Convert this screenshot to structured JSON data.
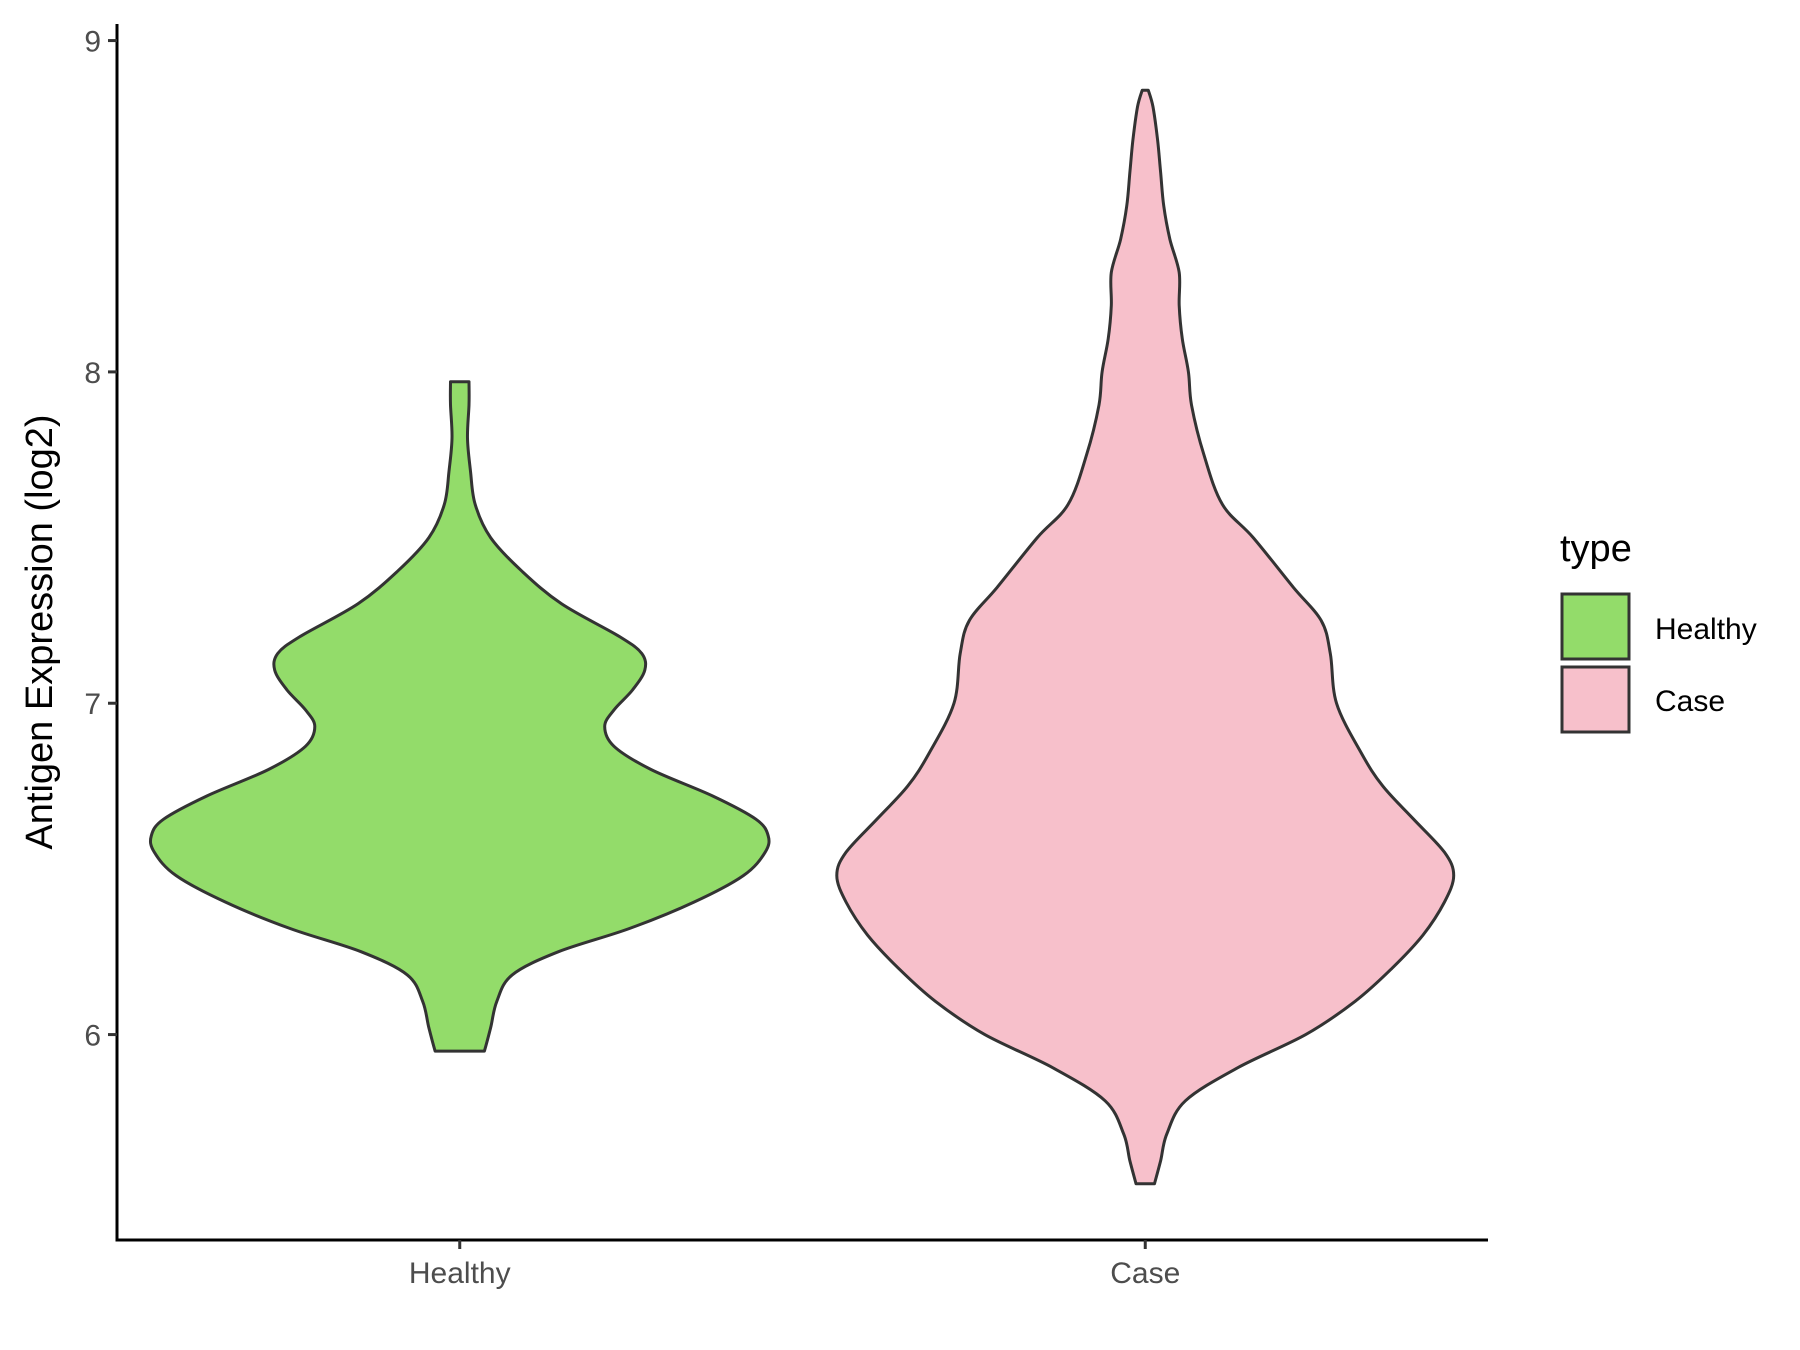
{
  "chart_data": {
    "type": "violin",
    "ylabel": "Antigen Expression (log2)",
    "xlabel": "",
    "ylim": [
      5.38,
      9.05
    ],
    "yticks": [
      6,
      7,
      8,
      9
    ],
    "categories": [
      "Healthy",
      "Case"
    ],
    "legend": {
      "title": "type",
      "position": "right",
      "entries": [
        {
          "label": "Healthy",
          "color": "#93dc6a"
        },
        {
          "label": "Case",
          "color": "#f7c0cb"
        }
      ]
    },
    "grid": false,
    "series": [
      {
        "name": "Healthy",
        "color": "#93dc6a",
        "min": 5.95,
        "max": 7.97,
        "profile": [
          [
            5.95,
            0.08
          ],
          [
            6.02,
            0.1
          ],
          [
            6.1,
            0.12
          ],
          [
            6.18,
            0.17
          ],
          [
            6.25,
            0.32
          ],
          [
            6.32,
            0.55
          ],
          [
            6.4,
            0.76
          ],
          [
            6.48,
            0.92
          ],
          [
            6.55,
            0.99
          ],
          [
            6.6,
            1.0
          ],
          [
            6.65,
            0.96
          ],
          [
            6.72,
            0.82
          ],
          [
            6.8,
            0.62
          ],
          [
            6.87,
            0.5
          ],
          [
            6.93,
            0.47
          ],
          [
            6.98,
            0.5
          ],
          [
            7.04,
            0.56
          ],
          [
            7.1,
            0.6
          ],
          [
            7.15,
            0.59
          ],
          [
            7.2,
            0.52
          ],
          [
            7.3,
            0.33
          ],
          [
            7.4,
            0.2
          ],
          [
            7.5,
            0.1
          ],
          [
            7.6,
            0.05
          ],
          [
            7.7,
            0.035
          ],
          [
            7.8,
            0.025
          ],
          [
            7.9,
            0.03
          ],
          [
            7.97,
            0.03
          ]
        ]
      },
      {
        "name": "Case",
        "color": "#f7c0cb",
        "min": 5.55,
        "max": 8.85,
        "profile": [
          [
            5.55,
            0.03
          ],
          [
            5.62,
            0.05
          ],
          [
            5.7,
            0.07
          ],
          [
            5.8,
            0.13
          ],
          [
            5.9,
            0.3
          ],
          [
            6.0,
            0.52
          ],
          [
            6.1,
            0.68
          ],
          [
            6.2,
            0.8
          ],
          [
            6.3,
            0.9
          ],
          [
            6.4,
            0.97
          ],
          [
            6.48,
            1.0
          ],
          [
            6.55,
            0.97
          ],
          [
            6.65,
            0.87
          ],
          [
            6.75,
            0.77
          ],
          [
            6.85,
            0.7
          ],
          [
            7.0,
            0.62
          ],
          [
            7.15,
            0.6
          ],
          [
            7.25,
            0.57
          ],
          [
            7.35,
            0.48
          ],
          [
            7.5,
            0.35
          ],
          [
            7.6,
            0.25
          ],
          [
            7.75,
            0.19
          ],
          [
            7.9,
            0.15
          ],
          [
            8.0,
            0.14
          ],
          [
            8.1,
            0.12
          ],
          [
            8.2,
            0.11
          ],
          [
            8.3,
            0.11
          ],
          [
            8.4,
            0.08
          ],
          [
            8.5,
            0.06
          ],
          [
            8.6,
            0.05
          ],
          [
            8.7,
            0.04
          ],
          [
            8.8,
            0.025
          ],
          [
            8.85,
            0.01
          ]
        ]
      }
    ]
  }
}
